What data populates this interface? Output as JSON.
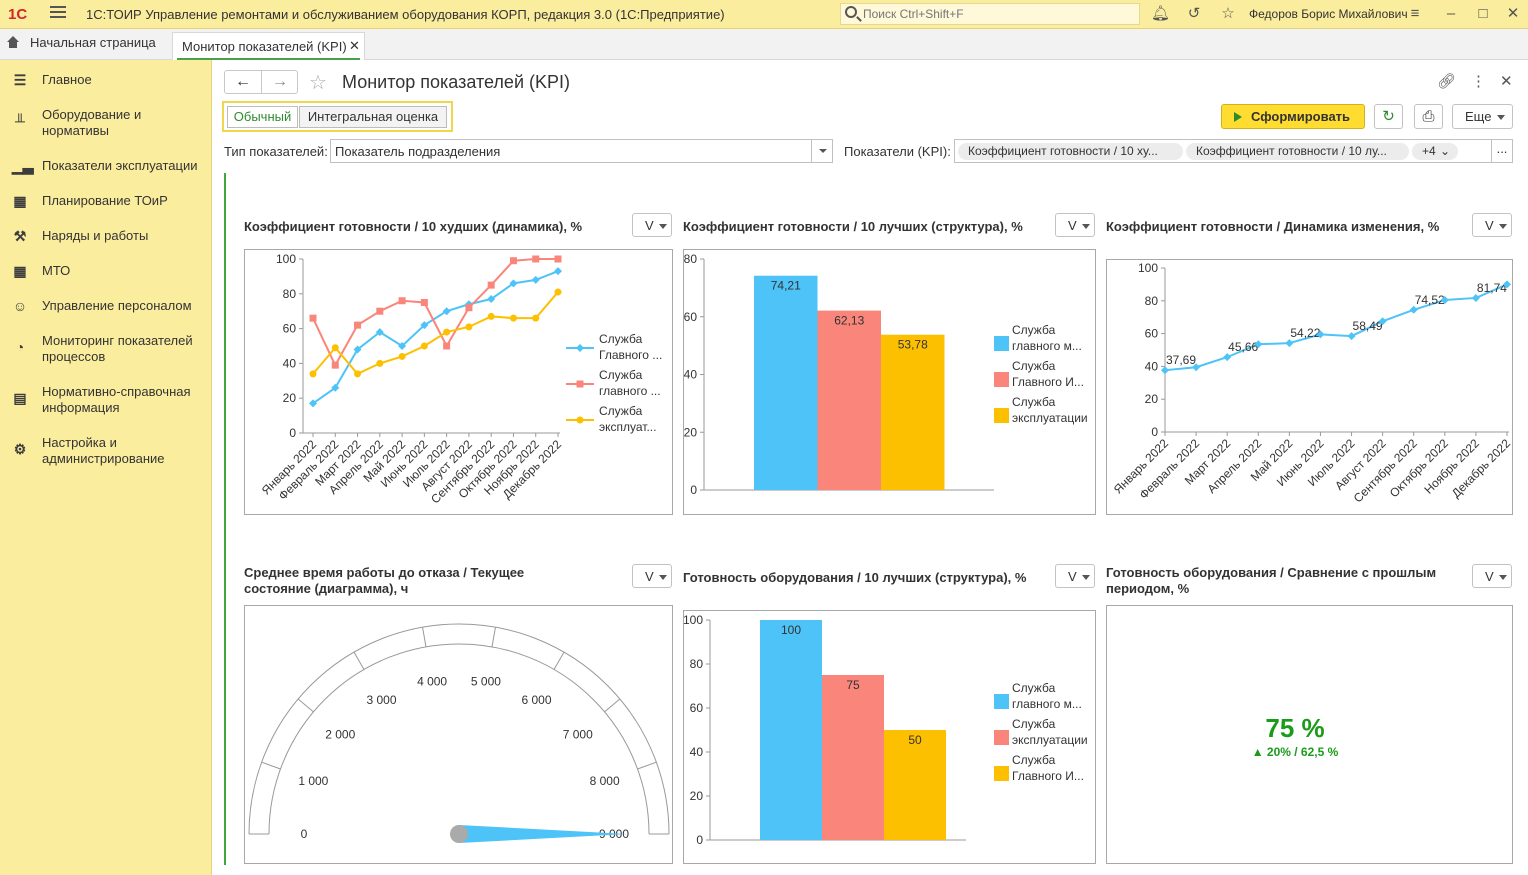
{
  "app": {
    "logo": "1С",
    "title": "1С:ТОИР Управление ремонтами и обслуживанием оборудования КОРП, редакция 3.0  (1С:Предприятие)",
    "search_placeholder": "Поиск Ctrl+Shift+F",
    "user": "Федоров Борис Михайлович"
  },
  "tabs": {
    "home": "Начальная страница",
    "current": "Монитор показателей (KPI)"
  },
  "sidebar": [
    {
      "label": "Главное",
      "icon": "list-icon"
    },
    {
      "label": "Оборудование и нормативы",
      "icon": "equipment-icon"
    },
    {
      "label": "Показатели эксплуатации",
      "icon": "bar-chart-icon"
    },
    {
      "label": "Планирование ТОиР",
      "icon": "calendar-icon"
    },
    {
      "label": "Наряды и работы",
      "icon": "tools-icon"
    },
    {
      "label": "МТО",
      "icon": "grid-icon"
    },
    {
      "label": "Управление персоналом",
      "icon": "person-icon"
    },
    {
      "label": "Мониторинг показателей процессов",
      "icon": "pie-icon"
    },
    {
      "label": "Нормативно-справочная информация",
      "icon": "book-icon"
    },
    {
      "label": "Настройка и администрирование",
      "icon": "gear-icon"
    }
  ],
  "form": {
    "title": "Монитор показателей (KPI)",
    "mode_normal": "Обычный",
    "mode_integral": "Интегральная оценка",
    "generate_label": "Сформировать",
    "more_label": "Еще",
    "type_label": "Тип показателей:",
    "type_value": "Показатель подразделения",
    "kpi_label": "Показатели (KPI):",
    "kpi_chips": [
      "Коэффициент готовности / 10 ху...",
      "Коэффициент готовности / 10 лу..."
    ],
    "kpi_more": "+4",
    "kpi_dots": "...",
    "v_label": "V"
  },
  "colors": {
    "blue": "#4dc3f7",
    "red": "#f9857b",
    "yellow": "#fdc000",
    "green": "#1a9c1a",
    "sidebar": "#fbed9e",
    "accent_button": "#ffdc30"
  },
  "chart_data": [
    {
      "type": "line",
      "title": "Коэффициент готовности / 10 худших (динамика), %",
      "categories": [
        "Январь 2022",
        "Февраль 2022",
        "Март 2022",
        "Апрель 2022",
        "Май 2022",
        "Июнь 2022",
        "Июль 2022",
        "Август 2022",
        "Сентябрь 2022",
        "Октябрь 2022",
        "Ноябрь 2022",
        "Декабрь 2022"
      ],
      "ylim": [
        0,
        100
      ],
      "yticks": [
        0,
        20,
        40,
        60,
        80,
        100
      ],
      "legend": "right",
      "series": [
        {
          "name": "Служба Главного ...",
          "color": "#4dc3f7",
          "marker": "diamond",
          "values": [
            17,
            26,
            48,
            58,
            50,
            62,
            70,
            74,
            77,
            86,
            88,
            93
          ]
        },
        {
          "name": "Служба главного ...",
          "color": "#f9857b",
          "marker": "square",
          "values": [
            66,
            39,
            62,
            70,
            76,
            75,
            50,
            72,
            85,
            99,
            100,
            100
          ]
        },
        {
          "name": "Служба эксплуат...",
          "color": "#fdc000",
          "marker": "circle",
          "values": [
            34,
            49,
            34,
            40,
            44,
            50,
            58,
            61,
            67,
            66,
            66,
            81
          ]
        }
      ]
    },
    {
      "type": "bar",
      "title": "Коэффициент готовности / 10 лучших (структура), %",
      "categories": [
        "Служба главного м...",
        "Служба Главного И...",
        "Служба эксплуатации"
      ],
      "values": [
        74.21,
        62.13,
        53.78
      ],
      "data_labels": [
        "74,21",
        "62,13",
        "53,78"
      ],
      "colors": [
        "#4dc3f7",
        "#f9857b",
        "#fdc000"
      ],
      "ylim": [
        0,
        80
      ],
      "yticks": [
        0,
        20,
        40,
        60,
        80
      ],
      "legend": "right"
    },
    {
      "type": "line",
      "title": "Коэффициент готовности / Динамика изменения, %",
      "categories": [
        "Январь 2022",
        "Февраль 2022",
        "Март 2022",
        "Апрель 2022",
        "Май 2022",
        "Июнь 2022",
        "Июль 2022",
        "Август 2022",
        "Сентябрь 2022",
        "Октябрь 2022",
        "Ноябрь 2022",
        "Декабрь 2022"
      ],
      "values": [
        37.69,
        39.5,
        45.66,
        53.5,
        54.22,
        59.5,
        58.49,
        67.5,
        74.52,
        80.5,
        81.74,
        90
      ],
      "data_labels": [
        "37,69",
        "",
        "45,66",
        "",
        "54,22",
        "",
        "58,49",
        "",
        "74,52",
        "",
        "81,74",
        ""
      ],
      "color": "#4dc3f7",
      "ylim": [
        0,
        100
      ],
      "yticks": [
        0,
        20,
        40,
        60,
        80,
        100
      ],
      "legend": "none"
    },
    {
      "type": "gauge",
      "title": "Среднее время работы до отказа / Текущее состояние (диаграмма), ч",
      "min": 0,
      "max": 9000,
      "ticks": [
        0,
        1000,
        2000,
        3000,
        4000,
        5000,
        6000,
        7000,
        8000,
        9000
      ],
      "tick_labels": [
        "0",
        "1 000",
        "2 000",
        "3 000",
        "4 000",
        "5 000",
        "6 000",
        "7 000",
        "8 000",
        "9 000"
      ],
      "value": 9000,
      "needle_color": "#4dc3f7"
    },
    {
      "type": "bar",
      "title": "Готовность оборудования / 10 лучших (структура), %",
      "categories": [
        "Служба главного м...",
        "Служба эксплуатации",
        "Служба Главного И..."
      ],
      "values": [
        100,
        75,
        50
      ],
      "data_labels": [
        "100",
        "75",
        "50"
      ],
      "colors": [
        "#4dc3f7",
        "#f9857b",
        "#fdc000"
      ],
      "ylim": [
        0,
        100
      ],
      "yticks": [
        0,
        20,
        40,
        60,
        80,
        100
      ],
      "legend": "right"
    },
    {
      "type": "indicator",
      "title": "Готовность оборудования / Сравнение с прошлым периодом, %",
      "value_text": "75 %",
      "delta_text": "▲ 20% / 62,5 %",
      "color": "#1a9c1a"
    }
  ]
}
